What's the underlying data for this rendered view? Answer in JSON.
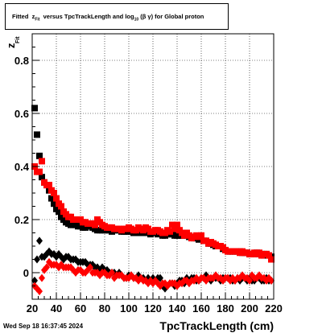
{
  "title": {
    "prefix": "Fitted",
    "z": "z",
    "z_sub": "Fit",
    "middle": "versus TpcTrackLength and log",
    "log_sub": "10",
    "suffix": "(β γ) for Global proton"
  },
  "timestamp": "Wed Sep 18 16:37:45 2024",
  "chart_data": {
    "type": "scatter",
    "xlabel": "TpcTrackLength (cm)",
    "ylabel": "z",
    "ylabel_sub": "Fit",
    "xlim": [
      20,
      220
    ],
    "ylim": [
      -0.1,
      0.9
    ],
    "xticks": [
      "20",
      "40",
      "60",
      "80",
      "100",
      "120",
      "140",
      "160",
      "180",
      "200",
      "220"
    ],
    "yticks": [
      "0",
      "0.2",
      "0.4",
      "0.6",
      "0.8"
    ],
    "grid": true,
    "series": [
      {
        "color": "#000000",
        "marker": "square",
        "x": [
          22,
          24,
          26,
          28,
          30,
          32,
          34,
          36,
          38,
          40,
          42,
          44,
          46,
          48,
          50,
          52,
          54,
          56,
          58,
          60,
          62,
          64,
          66,
          68,
          70,
          72,
          74,
          76,
          78,
          80,
          82,
          84,
          86,
          88,
          90,
          92,
          94,
          96,
          98,
          100,
          102,
          104,
          106,
          108,
          110,
          112,
          114,
          116,
          118,
          120,
          122,
          124,
          126,
          128,
          130,
          132,
          134,
          136,
          138,
          140,
          142,
          144,
          146,
          148,
          150,
          152,
          154,
          156,
          158,
          160,
          162,
          164,
          166,
          168,
          170,
          172,
          174,
          176,
          178,
          180,
          182,
          184,
          186,
          188,
          190,
          192,
          194,
          196,
          198,
          200,
          202,
          204,
          206,
          208,
          210,
          212,
          214,
          216,
          218
        ],
        "y": [
          0.62,
          0.52,
          0.44,
          0.36,
          0.34,
          0.33,
          0.31,
          0.28,
          0.26,
          0.24,
          0.23,
          0.21,
          0.2,
          0.19,
          0.185,
          0.18,
          0.18,
          0.18,
          0.175,
          0.175,
          0.17,
          0.17,
          0.175,
          0.175,
          0.17,
          0.165,
          0.16,
          0.16,
          0.16,
          0.16,
          0.16,
          0.16,
          0.155,
          0.16,
          0.16,
          0.16,
          0.155,
          0.155,
          0.155,
          0.155,
          0.155,
          0.15,
          0.15,
          0.15,
          0.15,
          0.15,
          0.15,
          0.15,
          0.145,
          0.15,
          0.15,
          0.145,
          0.15,
          0.14,
          0.14,
          0.145,
          0.145,
          0.145,
          0.14,
          0.14,
          0.14,
          0.14,
          0.145,
          0.14,
          0.135,
          0.135,
          0.13,
          0.13,
          0.125,
          0.13,
          0.12,
          0.12,
          0.11,
          0.11,
          0.105,
          0.1,
          0.1,
          0.1,
          0.09,
          0.085,
          0.08,
          0.08,
          0.08,
          0.08,
          0.08,
          0.08,
          0.075,
          0.075,
          0.075,
          0.07,
          0.07,
          0.07,
          0.075,
          0.07,
          0.07,
          0.065,
          0.07,
          0.065,
          0.06
        ]
      },
      {
        "color": "#ff0000",
        "marker": "square",
        "x": [
          22,
          24,
          26,
          28,
          30,
          32,
          34,
          36,
          38,
          40,
          42,
          44,
          46,
          48,
          50,
          52,
          54,
          56,
          58,
          60,
          62,
          64,
          66,
          68,
          70,
          72,
          74,
          76,
          78,
          80,
          82,
          84,
          86,
          88,
          90,
          92,
          94,
          96,
          98,
          100,
          102,
          104,
          106,
          108,
          110,
          112,
          114,
          116,
          118,
          120,
          122,
          124,
          126,
          128,
          130,
          132,
          134,
          136,
          138,
          140,
          142,
          144,
          146,
          148,
          150,
          152,
          154,
          156,
          158,
          160,
          162,
          164,
          166,
          168,
          170,
          172,
          174,
          176,
          178,
          180,
          182,
          184,
          186,
          188,
          190,
          192,
          194,
          196,
          198,
          200,
          202,
          204,
          206,
          208,
          210,
          212,
          214,
          216,
          218
        ],
        "y": [
          0.4,
          0.38,
          0.38,
          0.42,
          0.34,
          0.33,
          0.33,
          0.31,
          0.3,
          0.28,
          0.26,
          0.25,
          0.23,
          0.22,
          0.21,
          0.21,
          0.2,
          0.2,
          0.2,
          0.2,
          0.19,
          0.19,
          0.185,
          0.185,
          0.185,
          0.18,
          0.2,
          0.19,
          0.18,
          0.175,
          0.17,
          0.17,
          0.17,
          0.165,
          0.165,
          0.165,
          0.16,
          0.165,
          0.165,
          0.17,
          0.165,
          0.16,
          0.16,
          0.17,
          0.165,
          0.16,
          0.17,
          0.165,
          0.155,
          0.155,
          0.16,
          0.16,
          0.155,
          0.15,
          0.15,
          0.16,
          0.155,
          0.18,
          0.165,
          0.18,
          0.16,
          0.15,
          0.14,
          0.15,
          0.14,
          0.13,
          0.135,
          0.14,
          0.135,
          0.14,
          0.12,
          0.12,
          0.11,
          0.115,
          0.11,
          0.105,
          0.1,
          0.1,
          0.095,
          0.085,
          0.08,
          0.08,
          0.08,
          0.08,
          0.08,
          0.075,
          0.08,
          0.075,
          0.075,
          0.07,
          0.07,
          0.075,
          0.07,
          0.075,
          0.065,
          0.07,
          0.07,
          0.065,
          0.05
        ]
      },
      {
        "color": "#000000",
        "marker": "diamond",
        "x": [
          22,
          24,
          26,
          28,
          30,
          32,
          34,
          36,
          38,
          40,
          42,
          44,
          46,
          48,
          50,
          52,
          54,
          56,
          58,
          60,
          62,
          64,
          66,
          68,
          70,
          72,
          74,
          76,
          78,
          80,
          82,
          84,
          86,
          88,
          90,
          92,
          94,
          96,
          98,
          100,
          102,
          104,
          106,
          108,
          110,
          112,
          114,
          116,
          118,
          120,
          122,
          124,
          126,
          128,
          130,
          132,
          134,
          136,
          138,
          140,
          142,
          144,
          146,
          148,
          150,
          152,
          154,
          156,
          158,
          160,
          162,
          164,
          166,
          168,
          170,
          172,
          174,
          176,
          178,
          180,
          182,
          184,
          186,
          188,
          190,
          192,
          194,
          196,
          198,
          200,
          202,
          204,
          206,
          208,
          210,
          212,
          214,
          216,
          218
        ],
        "y": [
          -0.03,
          0.05,
          0.12,
          0.06,
          0.06,
          0.07,
          0.08,
          0.07,
          0.07,
          0.06,
          0.07,
          0.06,
          0.05,
          0.06,
          0.06,
          0.05,
          0.05,
          0.05,
          0.04,
          0.04,
          0.04,
          0.04,
          0.03,
          0.03,
          0.03,
          0.02,
          0.02,
          0.01,
          0.02,
          0.01,
          0.01,
          0.0,
          0.0,
          0.0,
          -0.01,
          0.0,
          -0.01,
          -0.02,
          -0.02,
          -0.01,
          -0.01,
          -0.02,
          -0.02,
          -0.01,
          -0.02,
          -0.02,
          -0.03,
          -0.02,
          -0.03,
          -0.02,
          -0.03,
          -0.02,
          -0.02,
          -0.05,
          -0.06,
          -0.05,
          -0.04,
          -0.04,
          -0.05,
          -0.04,
          -0.03,
          -0.03,
          -0.04,
          -0.02,
          -0.03,
          -0.02,
          -0.02,
          -0.03,
          -0.03,
          -0.02,
          -0.02,
          -0.01,
          -0.02,
          -0.03,
          -0.02,
          -0.02,
          -0.02,
          -0.03,
          -0.02,
          -0.02,
          -0.02,
          -0.02,
          -0.03,
          -0.03,
          -0.02,
          -0.03,
          -0.02,
          -0.02,
          -0.03,
          -0.02,
          -0.03,
          -0.03,
          -0.02,
          -0.02,
          -0.03,
          -0.03,
          -0.02,
          -0.03,
          -0.03
        ]
      },
      {
        "color": "#ff0000",
        "marker": "diamond",
        "x": [
          22,
          24,
          26,
          28,
          30,
          32,
          34,
          36,
          38,
          40,
          42,
          44,
          46,
          48,
          50,
          52,
          54,
          56,
          58,
          60,
          62,
          64,
          66,
          68,
          70,
          72,
          74,
          76,
          78,
          80,
          82,
          84,
          86,
          88,
          90,
          92,
          94,
          96,
          98,
          100,
          102,
          104,
          106,
          108,
          110,
          112,
          114,
          116,
          118,
          120,
          122,
          124,
          126,
          128,
          130,
          132,
          134,
          136,
          138,
          140,
          142,
          144,
          146,
          148,
          150,
          152,
          154,
          156,
          158,
          160,
          162,
          164,
          166,
          168,
          170,
          172,
          174,
          176,
          178,
          180,
          182,
          184,
          186,
          188,
          190,
          192,
          194,
          196,
          198,
          200,
          202,
          204,
          206,
          208,
          210,
          212,
          214,
          216,
          218
        ],
        "y": [
          -0.05,
          -0.06,
          -0.07,
          -0.02,
          0.01,
          0.02,
          0.04,
          0.03,
          0.03,
          0.03,
          0.02,
          0.03,
          0.02,
          0.02,
          0.02,
          0.02,
          0.01,
          0.0,
          0.01,
          0.01,
          0.0,
          0.0,
          0.01,
          0.02,
          0.0,
          0.0,
          0.0,
          -0.01,
          0.0,
          0.0,
          -0.01,
          -0.01,
          0.0,
          -0.02,
          -0.01,
          -0.01,
          -0.01,
          -0.02,
          -0.02,
          -0.02,
          -0.01,
          -0.02,
          -0.02,
          -0.03,
          -0.02,
          -0.03,
          -0.03,
          -0.04,
          -0.03,
          -0.04,
          -0.03,
          -0.04,
          -0.05,
          -0.04,
          -0.04,
          -0.05,
          -0.04,
          -0.04,
          -0.04,
          -0.05,
          -0.04,
          -0.04,
          -0.03,
          -0.03,
          -0.04,
          -0.03,
          -0.03,
          -0.02,
          -0.03,
          -0.02,
          -0.02,
          -0.03,
          -0.02,
          -0.02,
          -0.02,
          -0.01,
          -0.02,
          -0.02,
          -0.03,
          -0.02,
          -0.02,
          -0.03,
          -0.02,
          -0.03,
          -0.02,
          -0.02,
          -0.01,
          -0.02,
          -0.02,
          -0.03,
          -0.01,
          -0.02,
          -0.02,
          -0.01,
          -0.02,
          -0.02,
          -0.03,
          -0.02,
          -0.03
        ]
      }
    ]
  }
}
